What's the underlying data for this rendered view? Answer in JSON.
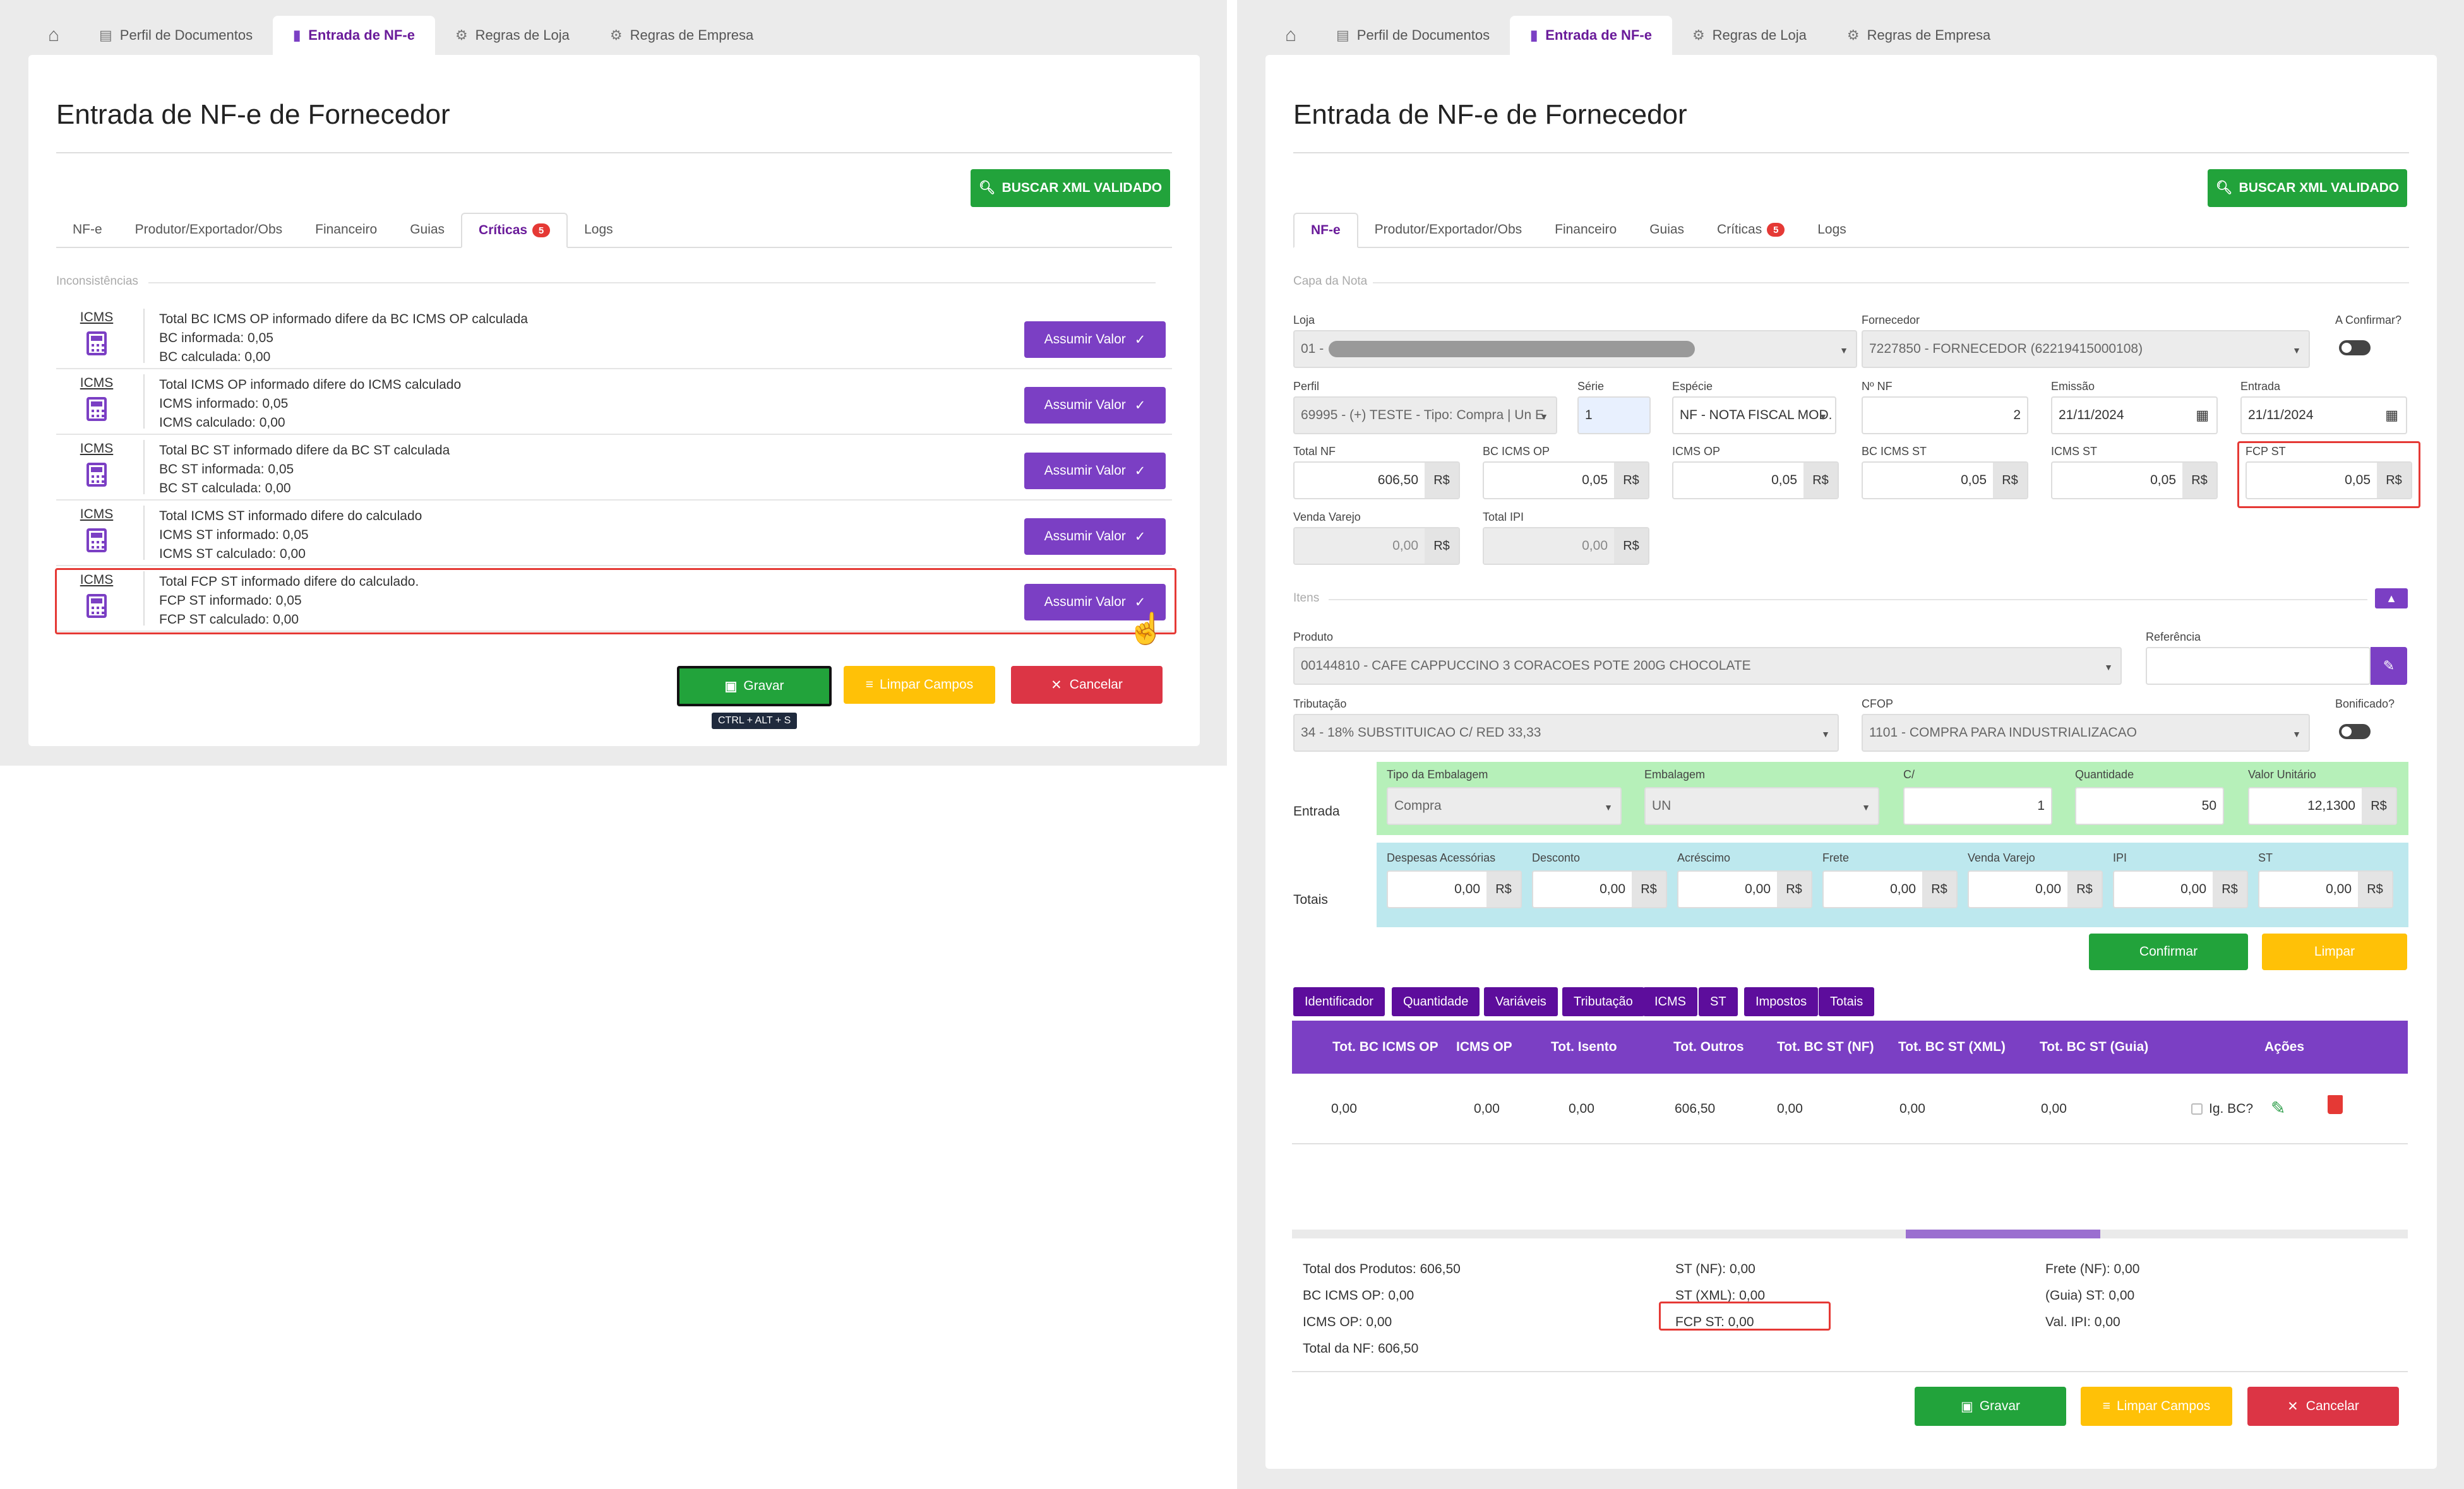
{
  "nav": {
    "tabs": [
      "Perfil de Documentos",
      "Entrada de NF-e",
      "Regras de Loja",
      "Regras de Empresa"
    ]
  },
  "page": {
    "title": "Entrada de NF-e de Fornecedor",
    "search_xml_label": "BUSCAR XML VALIDADO"
  },
  "subtabs": {
    "nfe": "NF-e",
    "produtor": "Produtor/Exportador/Obs",
    "financeiro": "Financeiro",
    "guias": "Guias",
    "criticas": "Críticas",
    "criticas_count": "5",
    "logs": "Logs"
  },
  "left": {
    "section": "Inconsistências",
    "rows": [
      {
        "cat": "ICMS",
        "title": "Total BC ICMS OP informado difere da BC ICMS OP calculada",
        "line1": "BC informada: 0,05",
        "line2": "BC calculada: 0,00"
      },
      {
        "cat": "ICMS",
        "title": "Total ICMS OP informado difere do ICMS calculado",
        "line1": "ICMS informado: 0,05",
        "line2": "ICMS calculado: 0,00"
      },
      {
        "cat": "ICMS",
        "title": "Total BC ST informado difere da BC ST calculada",
        "line1": "BC ST informada: 0,05",
        "line2": "BC ST calculada: 0,00"
      },
      {
        "cat": "ICMS",
        "title": "Total ICMS ST informado difere do calculado",
        "line1": "ICMS ST informado: 0,05",
        "line2": "ICMS ST calculado: 0,00"
      },
      {
        "cat": "ICMS",
        "title": "Total FCP ST informado difere do calculado.",
        "line1": "FCP ST informado: 0,05",
        "line2": "FCP ST calculado: 0,00"
      }
    ],
    "assume_label": "Assumir Valor",
    "save_label": "Gravar",
    "clear_label": "Limpar Campos",
    "cancel_label": "Cancelar",
    "shortcut": "CTRL + ALT + S"
  },
  "right": {
    "section_capa": "Capa da Nota",
    "loja": {
      "label": "Loja",
      "value": "01 -"
    },
    "fornecedor": {
      "label": "Fornecedor",
      "value": "7227850 - FORNECEDOR (62219415000108)"
    },
    "confirmar": {
      "label": "A Confirmar?"
    },
    "perfil": {
      "label": "Perfil",
      "value": "69995 - (+) TESTE - Tipo: Compra | Un E"
    },
    "serie": {
      "label": "Série",
      "value": "1"
    },
    "especie": {
      "label": "Espécie",
      "value": "NF - NOTA FISCAL MOD."
    },
    "nnf": {
      "label": "Nº NF",
      "value": "2"
    },
    "emissao": {
      "label": "Emissão",
      "value": "21/11/2024"
    },
    "entrada": {
      "label": "Entrada",
      "value": "21/11/2024"
    },
    "money_unit": "R$",
    "total_nf": {
      "label": "Total NF",
      "value": "606,50"
    },
    "bc_icms_op": {
      "label": "BC ICMS OP",
      "value": "0,05"
    },
    "icms_op": {
      "label": "ICMS OP",
      "value": "0,05"
    },
    "bc_icms_st": {
      "label": "BC ICMS ST",
      "value": "0,05"
    },
    "icms_st": {
      "label": "ICMS ST",
      "value": "0,05"
    },
    "fcp_st": {
      "label": "FCP ST",
      "value": "0,05"
    },
    "venda_varejo": {
      "label": "Venda Varejo",
      "value": "0,00"
    },
    "total_ipi": {
      "label": "Total IPI",
      "value": "0,00"
    },
    "section_itens": "Itens",
    "produto": {
      "label": "Produto",
      "value": "00144810 - CAFE CAPPUCCINO 3 CORACOES POTE 200G CHOCOLATE"
    },
    "referencia": {
      "label": "Referência",
      "value": ""
    },
    "tributacao": {
      "label": "Tributação",
      "value": "34 - 18% SUBSTITUICAO C/ RED 33,33"
    },
    "cfop": {
      "label": "CFOP",
      "value": "1101 - COMPRA PARA INDUSTRIALIZACAO"
    },
    "bonificado": {
      "label": "Bonificado?"
    },
    "entrada_row": {
      "label": "Entrada",
      "tipo_emb_label": "Tipo da Embalagem",
      "tipo_emb": "Compra",
      "emb_label": "Embalagem",
      "emb": "UN",
      "c_label": "C/",
      "c": "1",
      "qtd_label": "Quantidade",
      "qtd": "50",
      "vu_label": "Valor Unitário",
      "vu": "12,1300"
    },
    "totais_row": {
      "label": "Totais",
      "fields": [
        {
          "label": "Despesas Acessórias",
          "value": "0,00"
        },
        {
          "label": "Desconto",
          "value": "0,00"
        },
        {
          "label": "Acréscimo",
          "value": "0,00"
        },
        {
          "label": "Frete",
          "value": "0,00"
        },
        {
          "label": "Venda Varejo",
          "value": "0,00"
        },
        {
          "label": "IPI",
          "value": "0,00"
        },
        {
          "label": "ST",
          "value": "0,00"
        }
      ]
    },
    "confirm_label": "Confirmar",
    "limpar_label": "Limpar",
    "item_tabs": [
      "Identificador",
      "Quantidade",
      "Variáveis",
      "Tributação",
      "ICMS",
      "ST",
      "Impostos",
      "Totais"
    ],
    "table": {
      "headers": [
        "Tot. BC ICMS OP",
        "ICMS OP",
        "Tot. Isento",
        "Tot. Outros",
        "Tot. BC ST (NF)",
        "Tot. BC ST (XML)",
        "Tot. BC ST (Guia)",
        "Ações"
      ],
      "row": [
        "0,00",
        "0,00",
        "0,00",
        "606,50",
        "0,00",
        "0,00",
        "0,00"
      ],
      "ig_bc": "Ig. BC?"
    },
    "summary": {
      "col1": [
        "Total dos Produtos: 606,50",
        "BC ICMS OP: 0,00",
        "ICMS OP: 0,00",
        "Total da NF: 606,50"
      ],
      "col2": [
        "ST (NF): 0,00",
        "ST (XML): 0,00",
        "FCP ST: 0,00"
      ],
      "col3": [
        "Frete (NF): 0,00",
        "(Guia) ST: 0,00",
        "Val. IPI: 0,00"
      ]
    },
    "save_label": "Gravar",
    "clear_label": "Limpar Campos",
    "cancel_label": "Cancelar"
  },
  "colors": {
    "purple": "#7b3fc4",
    "green": "#22a33b",
    "yellow": "#ffc107",
    "red": "#dc3545",
    "highlight": "#e53935"
  }
}
